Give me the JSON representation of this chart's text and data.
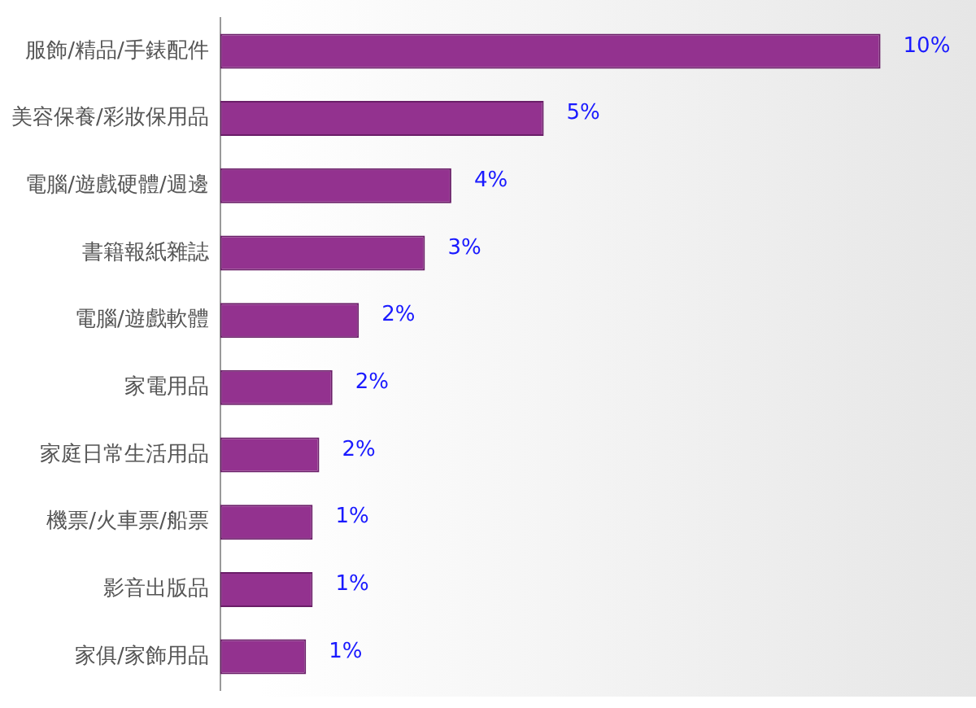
{
  "chart_data": {
    "type": "bar",
    "orientation": "horizontal",
    "categories": [
      "服飾/精品/手錶配件",
      "美容保養/彩妝保用品",
      "電腦/遊戲硬體/週邊",
      "書籍報紙雜誌",
      "電腦/遊戲軟體",
      "家電用品",
      "家庭日常生活用品",
      "機票/火車票/船票",
      "影音出版品",
      "家俱/家飾用品"
    ],
    "values": [
      10,
      4.9,
      3.5,
      3.1,
      2.1,
      1.7,
      1.5,
      1.4,
      1.4,
      1.3
    ],
    "value_labels": [
      "10%",
      "5%",
      "4%",
      "3%",
      "2%",
      "2%",
      "2%",
      "1%",
      "1%",
      "1%"
    ],
    "color": "#93328f",
    "grid": false
  }
}
